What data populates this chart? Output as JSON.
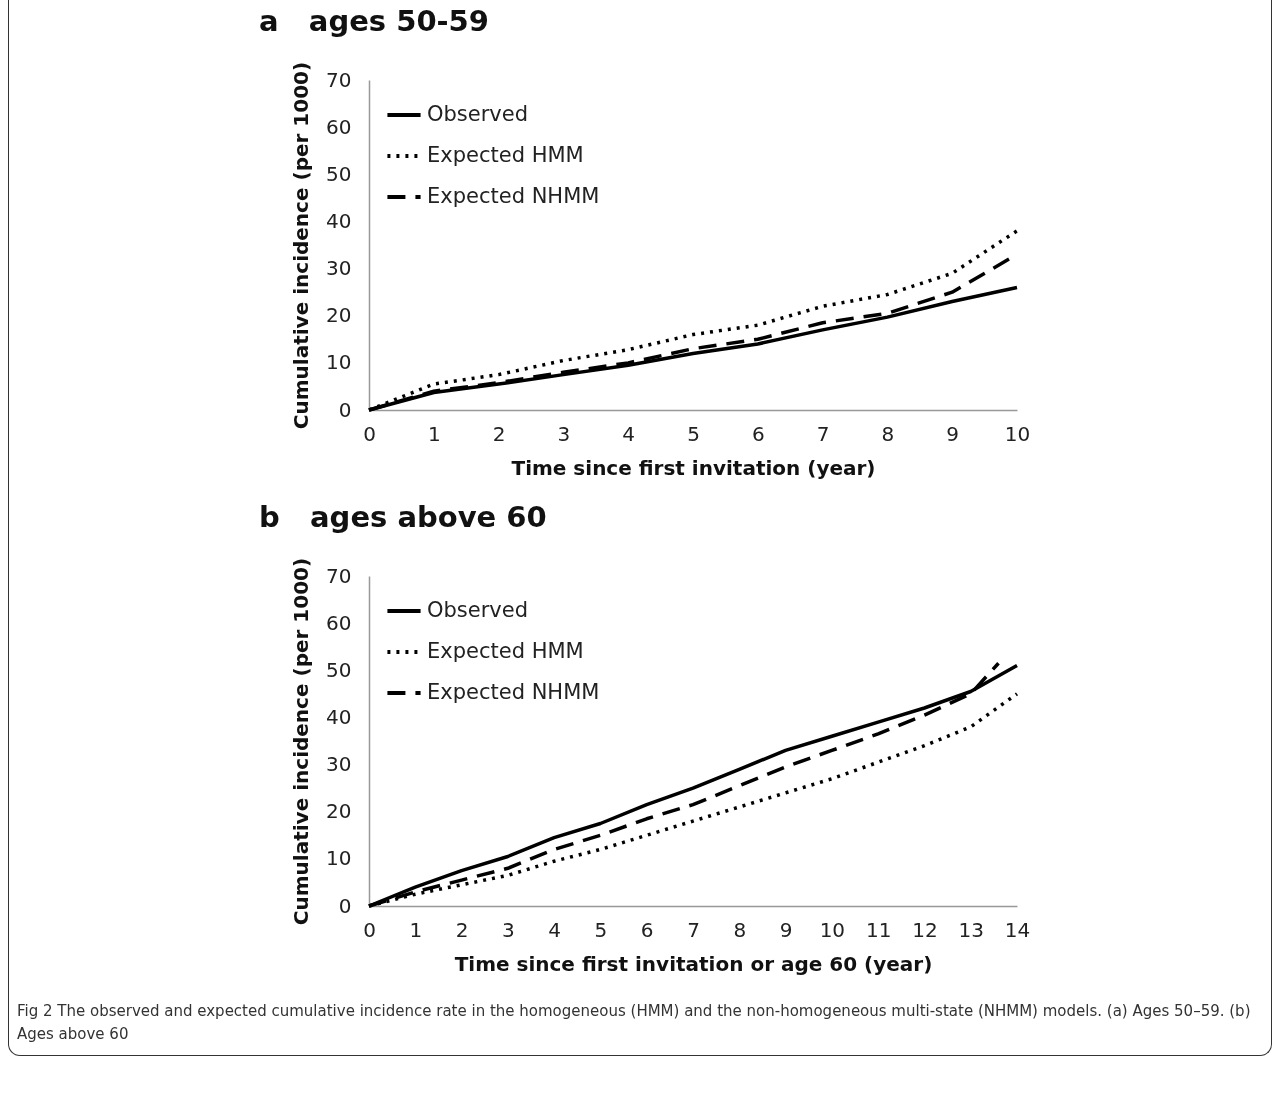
{
  "chart_data": [
    {
      "type": "line",
      "title": "a   ages 50-59",
      "xlabel": "Time since first invitation (year)",
      "ylabel": "Cumulative incidence (per 1000)",
      "x": [
        0,
        1,
        2,
        3,
        4,
        5,
        6,
        7,
        8,
        9,
        10
      ],
      "series": [
        {
          "name": "Observed",
          "color": "#000000",
          "line_style": "solid",
          "values": [
            0,
            3.7,
            5.5,
            7.5,
            9.5,
            12,
            14,
            17,
            19.7,
            23,
            26
          ]
        },
        {
          "name": "Expected HMM",
          "color": "#000000",
          "line_style": "dotted",
          "values": [
            0,
            5.5,
            7.5,
            10.5,
            12.8,
            16,
            18,
            22,
            24.5,
            29,
            38
          ]
        },
        {
          "name": "Expected NHMM",
          "color": "#000000",
          "line_style": "dashed",
          "values": [
            0,
            4,
            5.8,
            8,
            10,
            13,
            15,
            18.5,
            20.5,
            25,
            33
          ]
        }
      ],
      "xlim": [
        0,
        10
      ],
      "xticks": [
        0,
        1,
        2,
        3,
        4,
        5,
        6,
        7,
        8,
        9,
        10
      ],
      "ylim": [
        0,
        70
      ],
      "yticks": [
        0,
        10,
        20,
        30,
        40,
        50,
        60,
        70
      ],
      "legend": "top left",
      "marker": "none"
    },
    {
      "type": "line",
      "title": "b   ages above 60",
      "xlabel": "Time since first invitation or age 60 (year)",
      "ylabel": "Cumulative incidence (per 1000)",
      "x": [
        0,
        1,
        2,
        3,
        4,
        5,
        6,
        7,
        8,
        9,
        10,
        11,
        12,
        13,
        14
      ],
      "series": [
        {
          "name": "Observed",
          "color": "#000000",
          "line_style": "solid",
          "values": [
            0,
            4,
            7.5,
            10.5,
            14.5,
            17.5,
            21.5,
            25,
            29,
            33,
            36,
            39,
            42,
            45.5,
            51
          ]
        },
        {
          "name": "Expected HMM",
          "color": "#000000",
          "line_style": "dotted",
          "values": [
            0,
            2.5,
            4.5,
            6.5,
            9.5,
            12,
            15,
            18,
            21,
            24,
            27,
            30.5,
            34,
            38,
            45
          ]
        },
        {
          "name": "Expected NHMM",
          "color": "#000000",
          "line_style": "dashed",
          "x": [
            0,
            1,
            2,
            3,
            4,
            5,
            6,
            7,
            8,
            9,
            10,
            11,
            12,
            13,
            13.6
          ],
          "values": [
            0,
            3,
            5.5,
            8,
            12,
            15,
            18.5,
            21.5,
            25.5,
            29.5,
            33,
            36.5,
            40.5,
            45,
            51.5
          ]
        }
      ],
      "xlim": [
        0,
        14
      ],
      "xticks": [
        0,
        1,
        2,
        3,
        4,
        5,
        6,
        7,
        8,
        9,
        10,
        11,
        12,
        13,
        14
      ],
      "ylim": [
        0,
        70
      ],
      "yticks": [
        0,
        10,
        20,
        30,
        40,
        50,
        60,
        70
      ],
      "legend": "top left",
      "marker": "none",
      "annotations": [
        "Fig 2 The observed and expected cumulative incidence rate in the homogeneous (HMM) and the non-homogeneous multi-state (NHMM) models. (a) Ages 50–59. (b) Ages above 60"
      ]
    }
  ]
}
